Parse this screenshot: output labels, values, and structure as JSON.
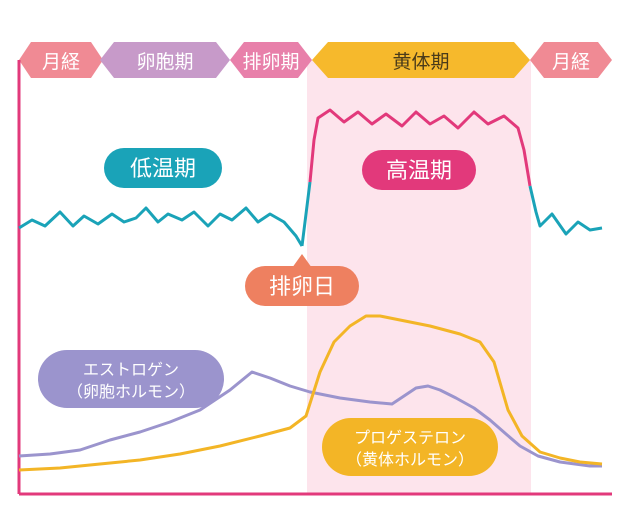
{
  "phases": [
    {
      "label": "月経",
      "color": "#f08a94"
    },
    {
      "label": "卵胞期",
      "color": "#c79ac9"
    },
    {
      "label": "排卵期",
      "color": "#e880aa"
    },
    {
      "label": "黄体期",
      "color": "#f6b92c"
    },
    {
      "label": "月経",
      "color": "#f08a94"
    }
  ],
  "temperature": {
    "low_label": "低温期",
    "high_label": "高温期",
    "low_color": "#1aa3b8",
    "high_color": "#e2397b"
  },
  "ovulation_day": {
    "label": "排卵日",
    "color": "#ee8060"
  },
  "estrogen": {
    "line1": "エストロゲン",
    "line2": "（卵胞ホルモン）",
    "color": "#9b94cd"
  },
  "progesterone": {
    "line1": "プロゲステロン",
    "line2": "（黄体ホルモン）",
    "color": "#f3b526"
  },
  "colors": {
    "luteal_band": "#fde4ec",
    "axis": "#e2397b"
  }
}
